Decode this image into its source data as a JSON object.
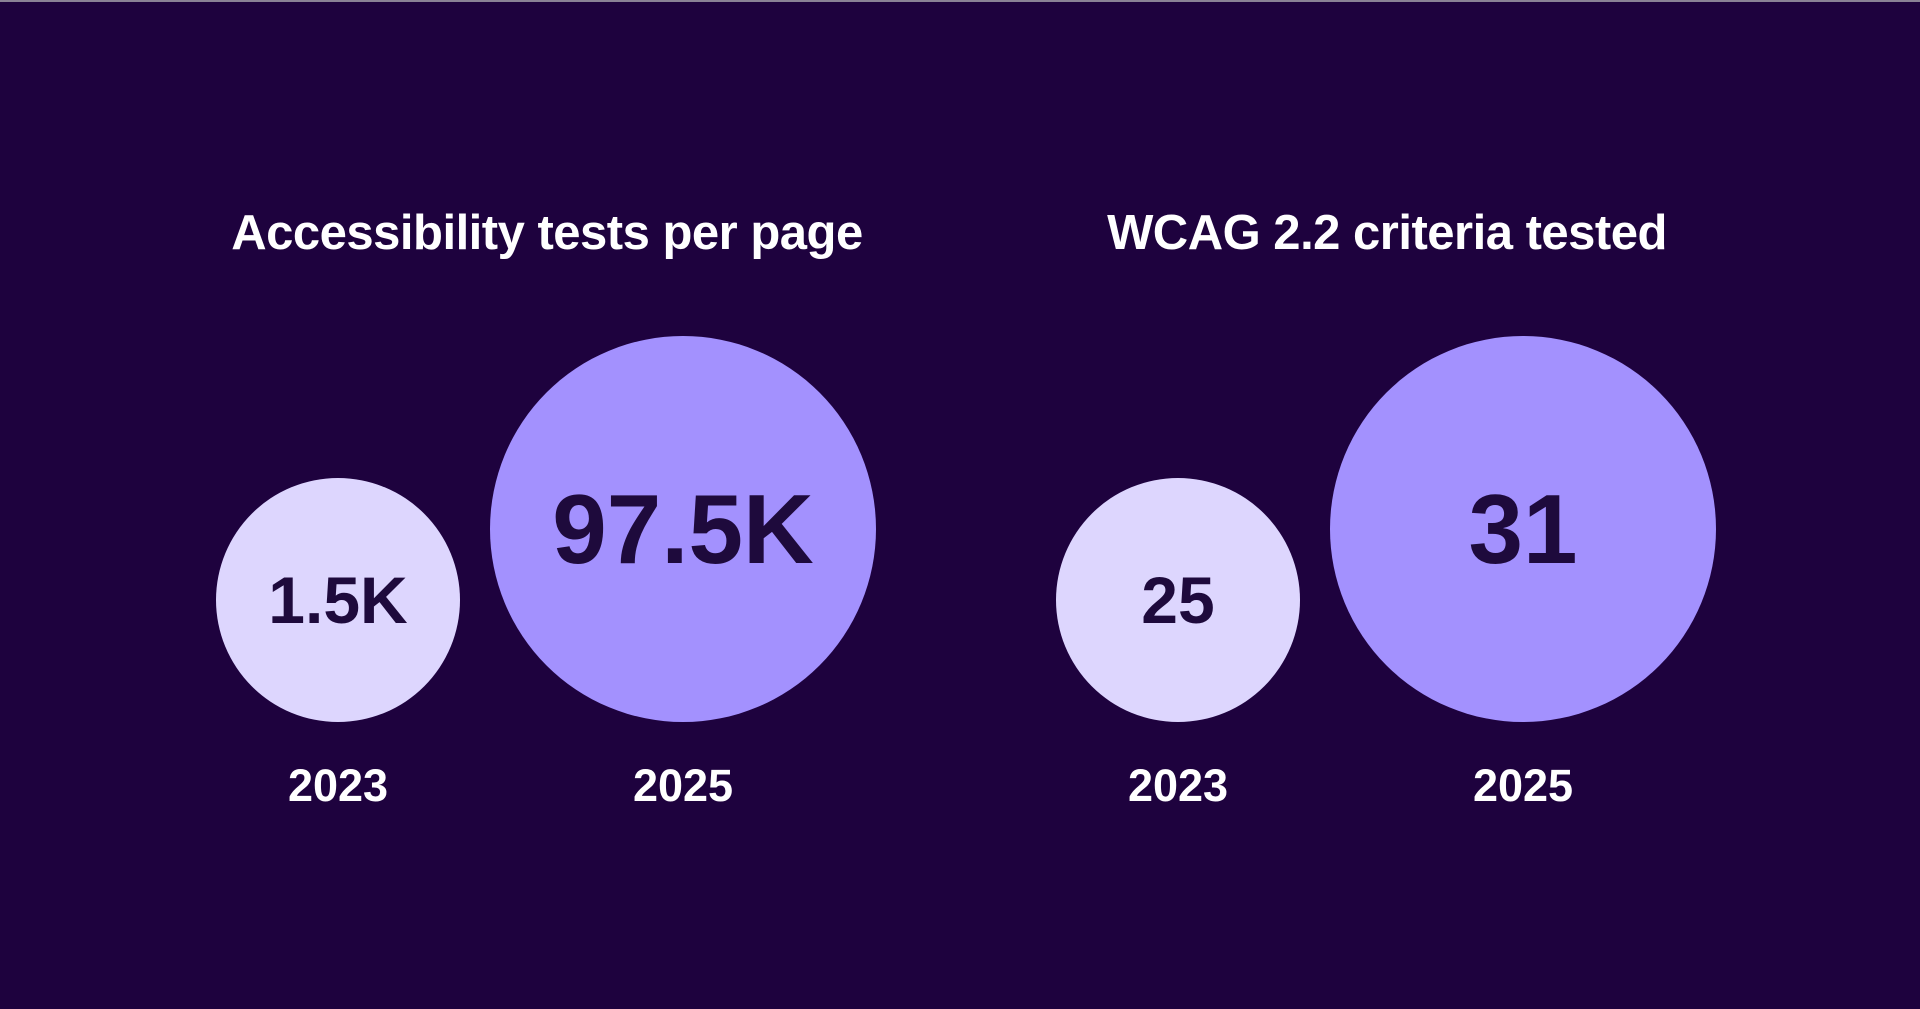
{
  "colors": {
    "background": "#1e023e",
    "year_2023": "#ddd6fe",
    "year_2025": "#a391fe",
    "value_text": "#1e0a3c"
  },
  "chart_data": [
    {
      "type": "bubble",
      "title": "Accessibility tests per page",
      "categories": [
        "2023",
        "2025"
      ],
      "values": [
        1500,
        97500
      ],
      "labels": [
        "1.5K",
        "97.5K"
      ]
    },
    {
      "type": "bubble",
      "title": "WCAG 2.2 criteria tested",
      "categories": [
        "2023",
        "2025"
      ],
      "values": [
        25,
        31
      ],
      "labels": [
        "25",
        "31"
      ]
    }
  ]
}
